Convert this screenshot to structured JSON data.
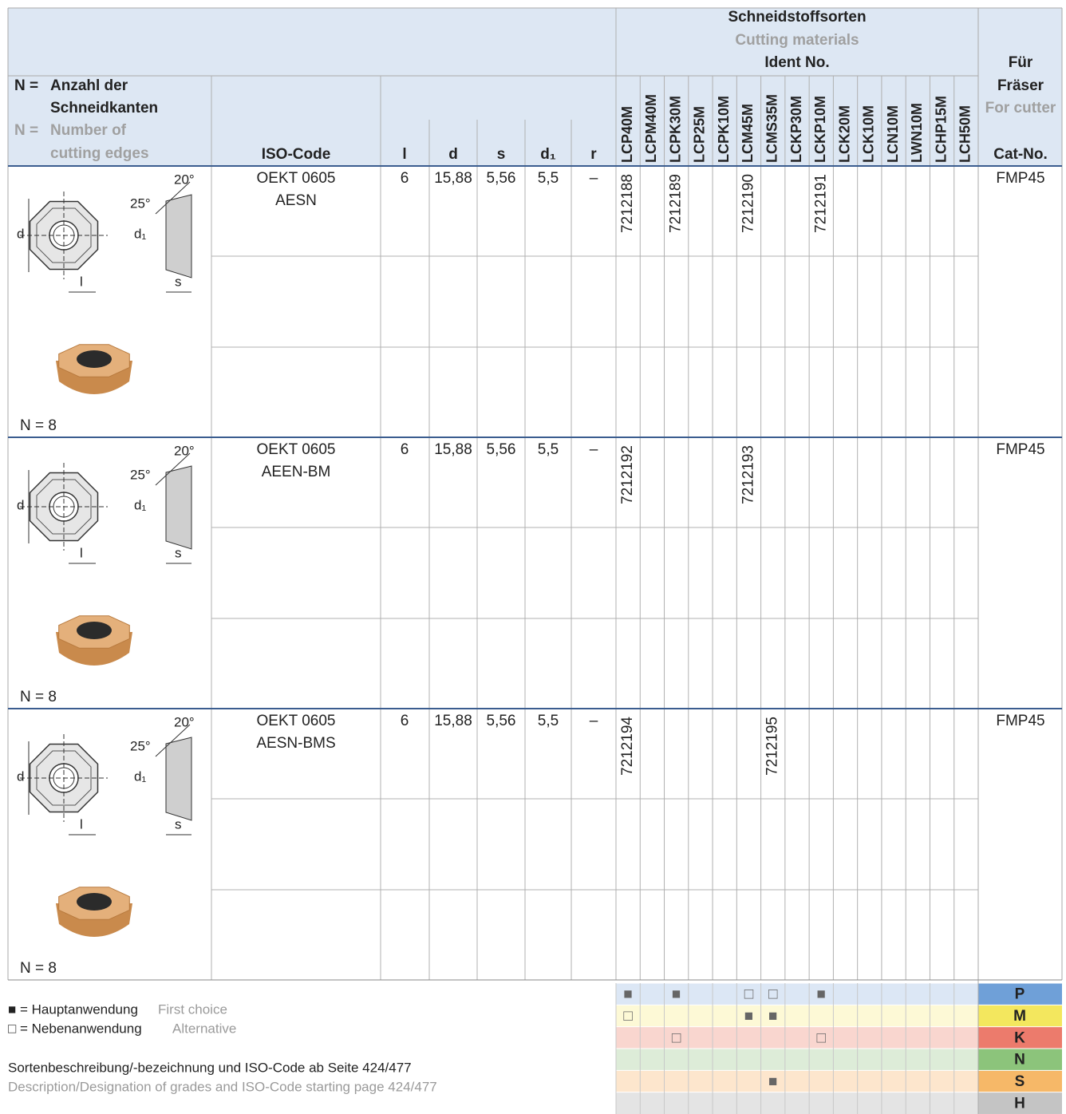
{
  "header": {
    "title_de": "Schneidstoffsorten",
    "title_en": "Cutting materials",
    "ident": "Ident No.",
    "fuer": "Für",
    "fraeser": "Fräser",
    "for_cutter": "For cutter"
  },
  "n_legend": {
    "n_de": "N =",
    "de1": "Anzahl der",
    "de2": "Schneidkanten",
    "n_en": "N =",
    "en1": "Number of",
    "en2": "cutting edges"
  },
  "columns": {
    "iso": "ISO-Code",
    "l": "l",
    "d": "d",
    "s": "s",
    "d1": "d₁",
    "r": "r",
    "cat": "Cat-No.",
    "grades": [
      "LCP40M",
      "LCPM40M",
      "LCPK30M",
      "LCP25M",
      "LCPK10M",
      "LCM45M",
      "LCMS35M",
      "LCKP30M",
      "LCKP10M",
      "LCK20M",
      "LCK10M",
      "LCN10M",
      "LWN10M",
      "LCHP15M",
      "LCH50M"
    ]
  },
  "diagram": {
    "angle1": "20°",
    "angle2": "25°",
    "d": "d",
    "d1": "d₁",
    "l": "l",
    "s": "s"
  },
  "rows": [
    {
      "iso": [
        "OEKT 0605",
        "AESN"
      ],
      "l": "6",
      "d": "15,88",
      "s": "5,56",
      "d1": "5,5",
      "r": "–",
      "cat": "FMP45",
      "n": "N = 8",
      "idents": [
        "7212188",
        null,
        "7212189",
        null,
        null,
        "7212190",
        null,
        null,
        "7212191",
        null,
        null,
        null,
        null,
        null,
        null
      ]
    },
    {
      "iso": [
        "OEKT 0605",
        "AEEN-BM"
      ],
      "l": "6",
      "d": "15,88",
      "s": "5,56",
      "d1": "5,5",
      "r": "–",
      "cat": "FMP45",
      "n": "N = 8",
      "idents": [
        "7212192",
        null,
        null,
        null,
        null,
        "7212193",
        null,
        null,
        null,
        null,
        null,
        null,
        null,
        null,
        null
      ]
    },
    {
      "iso": [
        "OEKT 0605",
        "AESN-BMS"
      ],
      "l": "6",
      "d": "15,88",
      "s": "5,56",
      "d1": "5,5",
      "r": "–",
      "cat": "FMP45",
      "n": "N = 8",
      "idents": [
        "7212194",
        null,
        null,
        null,
        null,
        null,
        "7212195",
        null,
        null,
        null,
        null,
        null,
        null,
        null,
        null
      ]
    }
  ],
  "materials": [
    {
      "label": "P",
      "color": "#6fa0d8",
      "bg": "#dce7f5",
      "marks": [
        "■",
        null,
        "■",
        null,
        null,
        "□",
        "□",
        null,
        "■",
        null,
        null,
        null,
        null,
        null,
        null
      ]
    },
    {
      "label": "M",
      "color": "#f3e75e",
      "bg": "#fdf9d6",
      "marks": [
        "□",
        null,
        null,
        null,
        null,
        "■",
        "■",
        null,
        null,
        null,
        null,
        null,
        null,
        null,
        null
      ]
    },
    {
      "label": "K",
      "color": "#ec7b6c",
      "bg": "#f9d6cf",
      "marks": [
        null,
        null,
        "□",
        null,
        null,
        null,
        null,
        null,
        "□",
        null,
        null,
        null,
        null,
        null,
        null
      ]
    },
    {
      "label": "N",
      "color": "#8cc47b",
      "bg": "#ddecd8",
      "marks": [
        null,
        null,
        null,
        null,
        null,
        null,
        null,
        null,
        null,
        null,
        null,
        null,
        null,
        null,
        null
      ]
    },
    {
      "label": "S",
      "color": "#f6b868",
      "bg": "#fde6cd",
      "marks": [
        null,
        null,
        null,
        null,
        null,
        null,
        "■",
        null,
        null,
        null,
        null,
        null,
        null,
        null,
        null
      ]
    },
    {
      "label": "H",
      "color": "#c4c4c4",
      "bg": "#e4e4e4",
      "marks": [
        null,
        null,
        null,
        null,
        null,
        null,
        null,
        null,
        null,
        null,
        null,
        null,
        null,
        null,
        null
      ]
    }
  ],
  "legend": {
    "first": "■ = Hauptanwendung",
    "first_en": "First choice",
    "alt": "□ = Nebenanwendung",
    "alt_en": "Alternative"
  },
  "footer": {
    "de": "Sortenbeschreibung/-bezeichnung und ISO-Code ab Seite 424/477",
    "en": "Description/Designation of grades and ISO-Code starting page 424/477"
  }
}
